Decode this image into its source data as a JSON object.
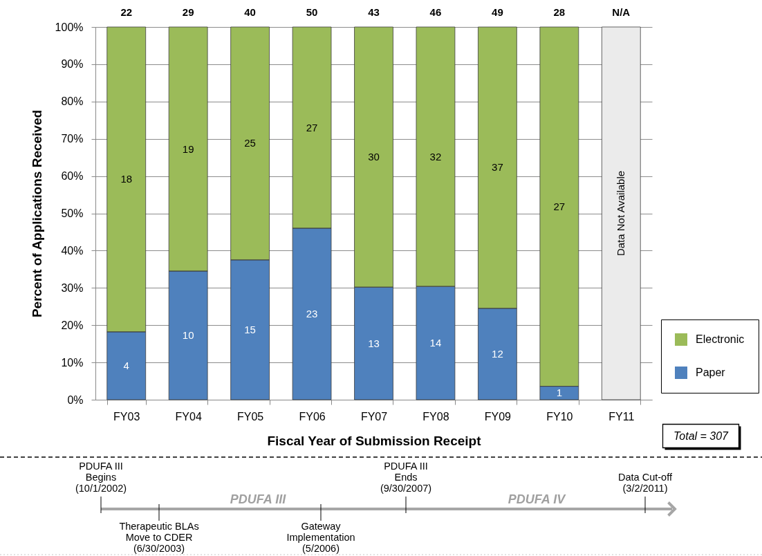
{
  "chart_data": {
    "type": "bar",
    "stacked": true,
    "xlabel": "Fiscal Year of Submission Receipt",
    "ylabel": "Percent of Applications Received",
    "categories": [
      "FY03",
      "FY04",
      "FY05",
      "FY06",
      "FY07",
      "FY08",
      "FY09",
      "FY10",
      "FY11"
    ],
    "series": [
      {
        "name": "Paper",
        "color": "#4f81bd",
        "values": [
          18.2,
          34.5,
          37.5,
          46,
          30.2,
          30.4,
          24.5,
          3.6,
          null
        ]
      },
      {
        "name": "Electronic",
        "color": "#9bbb59",
        "values": [
          81.8,
          65.5,
          62.5,
          54,
          69.8,
          69.6,
          75.5,
          96.4,
          null
        ]
      }
    ],
    "ylim": [
      0,
      100
    ],
    "yticks": [
      {
        "value": 0,
        "label": "0%"
      },
      {
        "value": 10,
        "label": "10%"
      },
      {
        "value": 20,
        "label": "20%"
      },
      {
        "value": 30,
        "label": "30%"
      },
      {
        "value": 40,
        "label": "40%"
      },
      {
        "value": 50,
        "label": "50%"
      },
      {
        "value": 60,
        "label": "60%"
      },
      {
        "value": 70,
        "label": "70%"
      },
      {
        "value": 80,
        "label": "80%"
      },
      {
        "value": 90,
        "label": "90%"
      },
      {
        "value": 100,
        "label": "100%"
      }
    ],
    "grid": "y",
    "legend": "bottom right",
    "bands": [
      {
        "axis": "x",
        "from": "FY11",
        "to": "FY11",
        "label": "Data Not Available",
        "color": "#ebebeb"
      }
    ],
    "annotations": [
      {
        "text": "22",
        "x": "FY03",
        "y": 100
      },
      {
        "text": "29",
        "x": "FY04",
        "y": 100
      },
      {
        "text": "40",
        "x": "FY05",
        "y": 100
      },
      {
        "text": "50",
        "x": "FY06",
        "y": 100
      },
      {
        "text": "43",
        "x": "FY07",
        "y": 100
      },
      {
        "text": "46",
        "x": "FY08",
        "y": 100
      },
      {
        "text": "49",
        "x": "FY09",
        "y": 100
      },
      {
        "text": "28",
        "x": "FY10",
        "y": 100
      },
      {
        "text": "N/A",
        "x": "FY11",
        "y": 100
      },
      "4",
      "10",
      "15",
      "23",
      "13",
      "14",
      "12",
      "1",
      "18",
      "19",
      "25",
      "27",
      "30",
      "32",
      "37",
      "27",
      "Total = 307",
      "PDUFA III\nBegins\n(10/1/2002)",
      "Therapeutic BLAs\nMove to CDER\n(6/30/2003)",
      "PDUFA III",
      "Gateway\nImplementation\n(5/2006)",
      "PDUFA III\nEnds\n(9/30/2007)",
      "PDUFA IV",
      "Data Cut-off\n(3/2/2011)"
    ]
  }
}
